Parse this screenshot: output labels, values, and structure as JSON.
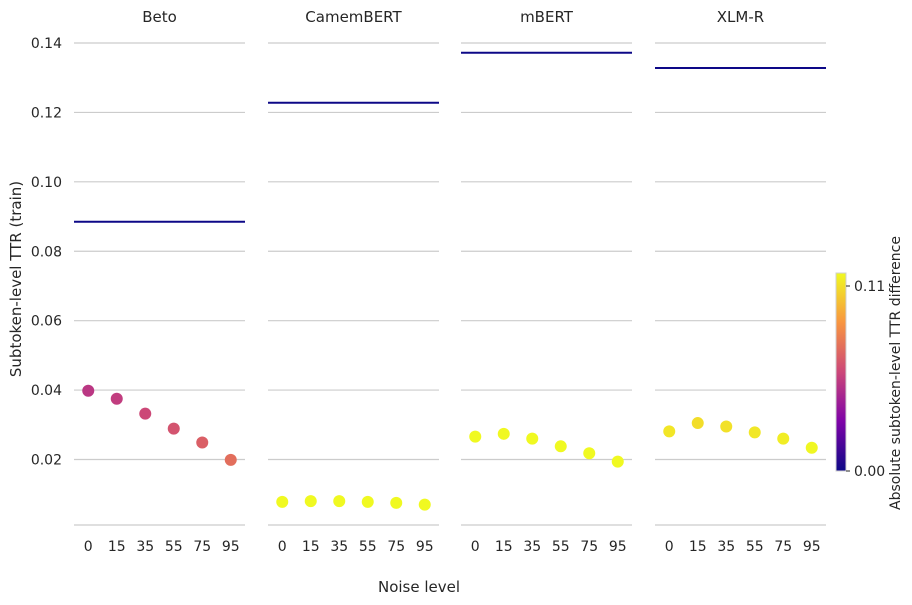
{
  "chart_data": {
    "type": "scatter",
    "ylabel": "Subtoken-level TTR (train)",
    "xlabel": "Noise level",
    "ylim": [
      0.001,
      0.14
    ],
    "yticks": [
      0.02,
      0.04,
      0.06,
      0.08,
      0.1,
      0.12,
      0.14
    ],
    "ytick_labels": [
      "0.02",
      "0.04",
      "0.06",
      "0.08",
      "0.10",
      "0.12",
      "0.14"
    ],
    "categories": [
      "0",
      "15",
      "35",
      "55",
      "75",
      "95"
    ],
    "grid": "horizontal",
    "colormap": "plasma",
    "colorbar": {
      "label": "Absolute subtoken-level TTR difference",
      "min": 0.0,
      "max": 0.11,
      "tick_labels": [
        "0.00",
        "0.11"
      ],
      "colors": [
        "#0d0887",
        "#7e03a8",
        "#cc4778",
        "#f89540",
        "#f0f921"
      ]
    },
    "panels": [
      {
        "title": "Beto",
        "baseline": 0.0885,
        "values": [
          0.0398,
          0.0375,
          0.0332,
          0.0289,
          0.0249,
          0.0199
        ]
      },
      {
        "title": "CamemBERT",
        "baseline": 0.1228,
        "values": [
          0.0078,
          0.008,
          0.008,
          0.0078,
          0.0075,
          0.007
        ]
      },
      {
        "title": "mBERT",
        "baseline": 0.1372,
        "values": [
          0.0266,
          0.0274,
          0.026,
          0.0238,
          0.0218,
          0.0194
        ]
      },
      {
        "title": "XLM-R",
        "baseline": 0.1328,
        "values": [
          0.0281,
          0.0305,
          0.0295,
          0.0278,
          0.026,
          0.0234
        ]
      }
    ]
  }
}
